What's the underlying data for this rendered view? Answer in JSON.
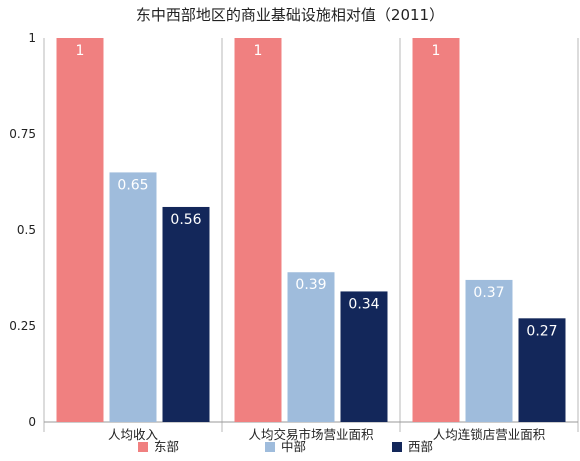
{
  "chart_data": {
    "type": "bar",
    "title": "东中西部地区的商业基础设施相对值（2011）",
    "categories": [
      "人均收入",
      "人均交易市场营业面积",
      "人均连锁店营业面积"
    ],
    "series": [
      {
        "name": "东部",
        "values": [
          1,
          1,
          1
        ],
        "color": "#f08080"
      },
      {
        "name": "中部",
        "values": [
          0.65,
          0.39,
          0.37
        ],
        "color": "#9fbcdc"
      },
      {
        "name": "西部",
        "values": [
          0.56,
          0.34,
          0.27
        ],
        "color": "#13275a"
      }
    ],
    "ylim": [
      0,
      1
    ],
    "yticks": [
      0,
      0.25,
      0.5,
      0.75,
      1
    ],
    "ytick_labels": [
      "0",
      "0.25",
      "0.5",
      "0.75",
      "1"
    ],
    "grid": "vertical separators between category groups",
    "legend": "bottom"
  }
}
